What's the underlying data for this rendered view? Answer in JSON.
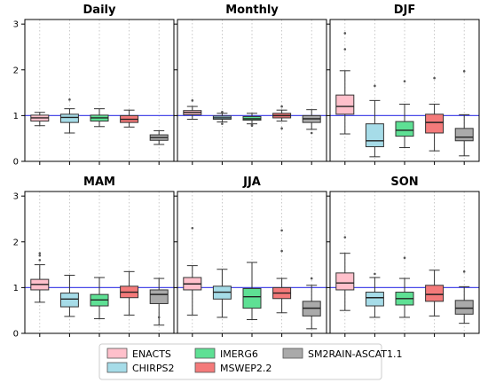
{
  "legend": [
    {
      "label": "ENACTS",
      "color": "#ffc0cb"
    },
    {
      "label": "CHIRPS2",
      "color": "#a6dce8"
    },
    {
      "label": "IMERG6",
      "color": "#5ee094"
    },
    {
      "label": "MSWEP2.2",
      "color": "#f47a7a"
    },
    {
      "label": "SM2RAIN-ASCAT1.1",
      "color": "#aaaaaa"
    }
  ],
  "colors": {
    "reference_line": "#4a4ae8",
    "median": "#222222",
    "grid": "#bbbbbb"
  },
  "chart_data": [
    {
      "type": "box",
      "title": "Daily",
      "ylim": [
        0,
        3.1
      ],
      "yticks": [
        0,
        1,
        2,
        3
      ],
      "reference_line": 1,
      "grid": "x-dotted",
      "series": [
        {
          "name": "ENACTS",
          "whisker_low": 0.78,
          "q1": 0.88,
          "median": 0.95,
          "q3": 1.01,
          "whisker_high": 1.07,
          "outliers": []
        },
        {
          "name": "CHIRPS2",
          "whisker_low": 0.62,
          "q1": 0.85,
          "median": 0.96,
          "q3": 1.03,
          "whisker_high": 1.15,
          "outliers": [
            1.35
          ]
        },
        {
          "name": "IMERG6",
          "whisker_low": 0.76,
          "q1": 0.88,
          "median": 0.95,
          "q3": 1.01,
          "whisker_high": 1.15,
          "outliers": []
        },
        {
          "name": "MSWEP2.2",
          "whisker_low": 0.75,
          "q1": 0.85,
          "median": 0.92,
          "q3": 1.0,
          "whisker_high": 1.12,
          "outliers": []
        },
        {
          "name": "SM2RAIN-ASCAT1.1",
          "whisker_low": 0.37,
          "q1": 0.46,
          "median": 0.52,
          "q3": 0.58,
          "whisker_high": 0.67,
          "outliers": []
        }
      ]
    },
    {
      "type": "box",
      "title": "Monthly",
      "ylim": [
        0,
        3.1
      ],
      "yticks": [
        0,
        1,
        2,
        3
      ],
      "reference_line": 1,
      "grid": "x-dotted",
      "series": [
        {
          "name": "ENACTS",
          "whisker_low": 0.92,
          "q1": 1.02,
          "median": 1.07,
          "q3": 1.11,
          "whisker_high": 1.2,
          "outliers": [
            1.33
          ]
        },
        {
          "name": "CHIRPS2",
          "whisker_low": 0.86,
          "q1": 0.92,
          "median": 0.95,
          "q3": 0.99,
          "whisker_high": 1.05,
          "outliers": [
            0.82,
            1.08
          ]
        },
        {
          "name": "IMERG6",
          "whisker_low": 0.82,
          "q1": 0.9,
          "median": 0.93,
          "q3": 0.98,
          "whisker_high": 1.05,
          "outliers": [
            0.78,
            0.8
          ]
        },
        {
          "name": "MSWEP2.2",
          "whisker_low": 0.88,
          "q1": 0.95,
          "median": 1.0,
          "q3": 1.05,
          "whisker_high": 1.12,
          "outliers": [
            0.72,
            1.2
          ]
        },
        {
          "name": "SM2RAIN-ASCAT1.1",
          "whisker_low": 0.7,
          "q1": 0.85,
          "median": 0.93,
          "q3": 1.0,
          "whisker_high": 1.13,
          "outliers": [
            0.62
          ]
        }
      ]
    },
    {
      "type": "box",
      "title": "DJF",
      "ylim": [
        0,
        3.1
      ],
      "yticks": [
        0,
        1,
        2,
        3
      ],
      "reference_line": 1,
      "grid": "x-dotted",
      "series": [
        {
          "name": "ENACTS",
          "whisker_low": 0.6,
          "q1": 1.03,
          "median": 1.2,
          "q3": 1.45,
          "whisker_high": 1.98,
          "outliers": [
            2.45,
            2.8
          ]
        },
        {
          "name": "CHIRPS2",
          "whisker_low": 0.1,
          "q1": 0.32,
          "median": 0.45,
          "q3": 0.82,
          "whisker_high": 1.33,
          "outliers": [
            1.65
          ]
        },
        {
          "name": "IMERG6",
          "whisker_low": 0.3,
          "q1": 0.55,
          "median": 0.68,
          "q3": 0.87,
          "whisker_high": 1.25,
          "outliers": [
            1.75
          ]
        },
        {
          "name": "MSWEP2.2",
          "whisker_low": 0.23,
          "q1": 0.62,
          "median": 0.85,
          "q3": 1.03,
          "whisker_high": 1.25,
          "outliers": [
            1.82
          ]
        },
        {
          "name": "SM2RAIN-ASCAT1.1",
          "whisker_low": 0.12,
          "q1": 0.45,
          "median": 0.53,
          "q3": 0.72,
          "whisker_high": 1.02,
          "outliers": [
            1.97
          ]
        }
      ]
    },
    {
      "type": "box",
      "title": "MAM",
      "ylim": [
        0,
        3.1
      ],
      "yticks": [
        0,
        1,
        2,
        3
      ],
      "reference_line": 1,
      "grid": "x-dotted",
      "series": [
        {
          "name": "ENACTS",
          "whisker_low": 0.68,
          "q1": 0.95,
          "median": 1.07,
          "q3": 1.18,
          "whisker_high": 1.5,
          "outliers": [
            1.6,
            1.7,
            1.75
          ]
        },
        {
          "name": "CHIRPS2",
          "whisker_low": 0.37,
          "q1": 0.58,
          "median": 0.75,
          "q3": 0.88,
          "whisker_high": 1.27,
          "outliers": []
        },
        {
          "name": "IMERG6",
          "whisker_low": 0.32,
          "q1": 0.6,
          "median": 0.73,
          "q3": 0.85,
          "whisker_high": 1.22,
          "outliers": []
        },
        {
          "name": "MSWEP2.2",
          "whisker_low": 0.4,
          "q1": 0.78,
          "median": 0.9,
          "q3": 1.03,
          "whisker_high": 1.35,
          "outliers": []
        },
        {
          "name": "SM2RAIN-ASCAT1.1",
          "whisker_low": 0.18,
          "q1": 0.65,
          "median": 0.85,
          "q3": 0.95,
          "whisker_high": 1.2,
          "outliers": [
            0.35
          ]
        }
      ]
    },
    {
      "type": "box",
      "title": "JJA",
      "ylim": [
        0,
        3.1
      ],
      "yticks": [
        0,
        1,
        2,
        3
      ],
      "reference_line": 1,
      "grid": "x-dotted",
      "series": [
        {
          "name": "ENACTS",
          "whisker_low": 0.4,
          "q1": 0.95,
          "median": 1.08,
          "q3": 1.22,
          "whisker_high": 1.48,
          "outliers": [
            2.3
          ]
        },
        {
          "name": "CHIRPS2",
          "whisker_low": 0.35,
          "q1": 0.75,
          "median": 0.9,
          "q3": 1.03,
          "whisker_high": 1.4,
          "outliers": []
        },
        {
          "name": "IMERG6",
          "whisker_low": 0.3,
          "q1": 0.55,
          "median": 0.8,
          "q3": 0.98,
          "whisker_high": 1.55,
          "outliers": []
        },
        {
          "name": "MSWEP2.2",
          "whisker_low": 0.45,
          "q1": 0.76,
          "median": 0.88,
          "q3": 1.0,
          "whisker_high": 1.2,
          "outliers": [
            1.8,
            2.25
          ]
        },
        {
          "name": "SM2RAIN-ASCAT1.1",
          "whisker_low": 0.1,
          "q1": 0.38,
          "median": 0.55,
          "q3": 0.7,
          "whisker_high": 1.05,
          "outliers": [
            1.2
          ]
        }
      ]
    },
    {
      "type": "box",
      "title": "SON",
      "ylim": [
        0,
        3.1
      ],
      "yticks": [
        0,
        1,
        2,
        3
      ],
      "reference_line": 1,
      "grid": "x-dotted",
      "series": [
        {
          "name": "ENACTS",
          "whisker_low": 0.5,
          "q1": 0.95,
          "median": 1.1,
          "q3": 1.32,
          "whisker_high": 1.75,
          "outliers": [
            2.1
          ]
        },
        {
          "name": "CHIRPS2",
          "whisker_low": 0.35,
          "q1": 0.6,
          "median": 0.78,
          "q3": 0.9,
          "whisker_high": 1.22,
          "outliers": [
            1.3
          ]
        },
        {
          "name": "IMERG6",
          "whisker_low": 0.35,
          "q1": 0.62,
          "median": 0.76,
          "q3": 0.9,
          "whisker_high": 1.2,
          "outliers": [
            1.65
          ]
        },
        {
          "name": "MSWEP2.2",
          "whisker_low": 0.38,
          "q1": 0.7,
          "median": 0.85,
          "q3": 1.05,
          "whisker_high": 1.38,
          "outliers": []
        },
        {
          "name": "SM2RAIN-ASCAT1.1",
          "whisker_low": 0.22,
          "q1": 0.42,
          "median": 0.55,
          "q3": 0.72,
          "whisker_high": 1.02,
          "outliers": [
            1.35
          ]
        }
      ]
    }
  ]
}
